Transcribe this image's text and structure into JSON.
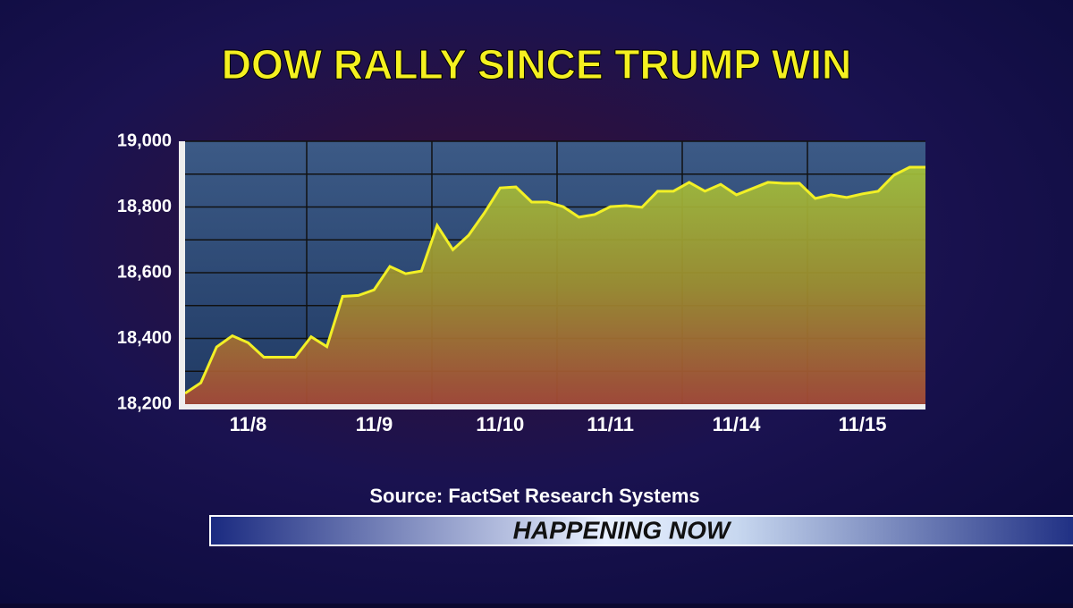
{
  "chart_data": {
    "type": "area",
    "title": "DOW RALLY SINCE TRUMP WIN",
    "source": "Source: FactSet Research Systems",
    "categories": [
      null,
      null,
      null,
      null,
      "11/8",
      null,
      null,
      null,
      null,
      null,
      null,
      null,
      "11/9",
      null,
      null,
      null,
      null,
      null,
      null,
      null,
      "11/10",
      null,
      null,
      null,
      null,
      null,
      null,
      "11/11",
      null,
      null,
      null,
      null,
      null,
      null,
      null,
      "11/14",
      null,
      null,
      null,
      null,
      null,
      null,
      null,
      "11/15",
      null,
      null,
      null,
      null
    ],
    "values": [
      18233,
      18265,
      18374,
      18408,
      18387,
      18343,
      18343,
      18343,
      18405,
      18375,
      18528,
      18531,
      18548,
      18619,
      18597,
      18605,
      18744,
      18670,
      18714,
      18782,
      18858,
      18861,
      18815,
      18815,
      18801,
      18769,
      18777,
      18801,
      18804,
      18799,
      18848,
      18848,
      18875,
      18848,
      18869,
      18837,
      18856,
      18875,
      18872,
      18872,
      18826,
      18837,
      18829,
      18840,
      18848,
      18897,
      18921,
      18921
    ],
    "color": "#f2f026",
    "ylim": [
      18200,
      19000
    ],
    "yticks": [
      {
        "value": 18200,
        "label": "18,200"
      },
      {
        "value": 18400,
        "label": "18,400"
      },
      {
        "value": 18600,
        "label": "18,600"
      },
      {
        "value": 18800,
        "label": "18,800"
      },
      {
        "value": 19000,
        "label": "19,000"
      }
    ],
    "grid": true
  },
  "banner": "HAPPENING NOW"
}
